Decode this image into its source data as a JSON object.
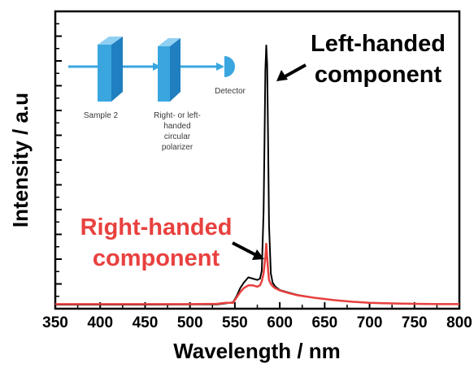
{
  "chart_data": {
    "type": "line",
    "xlabel": "Wavelength / nm",
    "ylabel": "Intensity / a.u",
    "xlim": [
      350,
      800
    ],
    "xticks": [
      "350",
      "400",
      "450",
      "500",
      "550",
      "600",
      "650",
      "700",
      "750",
      "800"
    ],
    "y_tick_labels_shown": false,
    "grid": false,
    "colors": {
      "left_handed": "#000000",
      "right_handed": "#e8413f",
      "inset_optics": "#3aa6e0"
    },
    "annotations": {
      "left": [
        "Left-handed",
        "component"
      ],
      "right": [
        "Right-handed",
        "component"
      ]
    },
    "inset": {
      "sample_label": "Sample 2",
      "polarizer_label": [
        "Right- or left-",
        "handed",
        "circular",
        "polarizer"
      ],
      "detector_label": "Detector"
    },
    "series": [
      {
        "color": "black",
        "x": [
          350,
          400,
          450,
          500,
          530,
          540,
          548,
          552,
          556,
          560,
          565,
          570,
          575,
          578,
          580,
          582,
          583,
          584,
          585,
          586,
          587,
          588,
          590,
          592,
          595,
          600,
          610,
          620,
          640,
          660,
          680,
          700,
          720,
          750,
          780,
          800
        ],
        "y": [
          0.3,
          0.3,
          0.3,
          0.35,
          0.4,
          0.8,
          1.2,
          3.5,
          6.5,
          8.5,
          10.5,
          10.0,
          9.5,
          10.0,
          13.0,
          35.0,
          60.0,
          88.0,
          97.0,
          90.0,
          60.0,
          30.0,
          12.0,
          8.5,
          7.0,
          5.8,
          4.8,
          3.9,
          2.8,
          2.0,
          1.4,
          1.0,
          0.8,
          0.6,
          0.5,
          0.5
        ]
      },
      {
        "color": "red",
        "x": [
          350,
          400,
          450,
          500,
          530,
          540,
          548,
          552,
          556,
          560,
          565,
          570,
          575,
          578,
          580,
          582,
          584,
          585,
          586,
          587,
          588,
          590,
          592,
          595,
          600,
          610,
          620,
          640,
          660,
          680,
          700,
          720,
          750,
          780,
          800
        ],
        "y": [
          0.5,
          0.5,
          0.5,
          0.5,
          0.6,
          1.0,
          1.0,
          3.0,
          5.0,
          6.5,
          7.5,
          7.5,
          7.0,
          7.5,
          9.0,
          12.0,
          18.0,
          23.0,
          18.0,
          13.0,
          9.5,
          8.0,
          7.2,
          6.4,
          5.6,
          4.6,
          3.8,
          2.8,
          2.0,
          1.4,
          1.0,
          0.8,
          0.6,
          0.5,
          0.5
        ]
      }
    ]
  }
}
